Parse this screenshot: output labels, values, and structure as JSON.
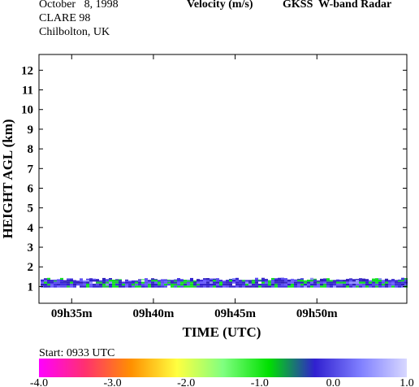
{
  "header": {
    "date": "October   8, 1998",
    "campaign": "CLARE 98",
    "site": "Chilbolton, UK",
    "quantity": "Velocity (m/s)",
    "instrument": "GKSS  W-band Radar"
  },
  "chart_data": {
    "type": "heatmap",
    "title": "Velocity (m/s)",
    "xlabel": "TIME (UTC)",
    "ylabel": "HEIGHT AGL (km)",
    "x_ticks": [
      "09h35m",
      "09h40m",
      "09h45m",
      "09h50m"
    ],
    "x_tick_minutes": [
      35,
      40,
      45,
      50
    ],
    "xlim_minutes": [
      33.0,
      55.5
    ],
    "y_ticks": [
      "1",
      "2",
      "3",
      "4",
      "5",
      "6",
      "7",
      "8",
      "9",
      "10",
      "11",
      "12"
    ],
    "ylim_km": [
      0.15,
      12.8
    ],
    "echo_layer_km": [
      0.95,
      1.45
    ],
    "colorbar": {
      "ticks": [
        "-4.0",
        "-3.0",
        "-2.0",
        "-1.0",
        "0.0",
        "1.0"
      ],
      "range": [
        -4.0,
        1.0
      ],
      "colors": [
        "#ff00ff",
        "#ff3070",
        "#ff9000",
        "#ffff40",
        "#80ff80",
        "#00e000",
        "#3020d0",
        "#8080ff",
        "#d8d8ff"
      ]
    },
    "grid": false
  },
  "footer": {
    "start": "Start: 0933 UTC"
  }
}
